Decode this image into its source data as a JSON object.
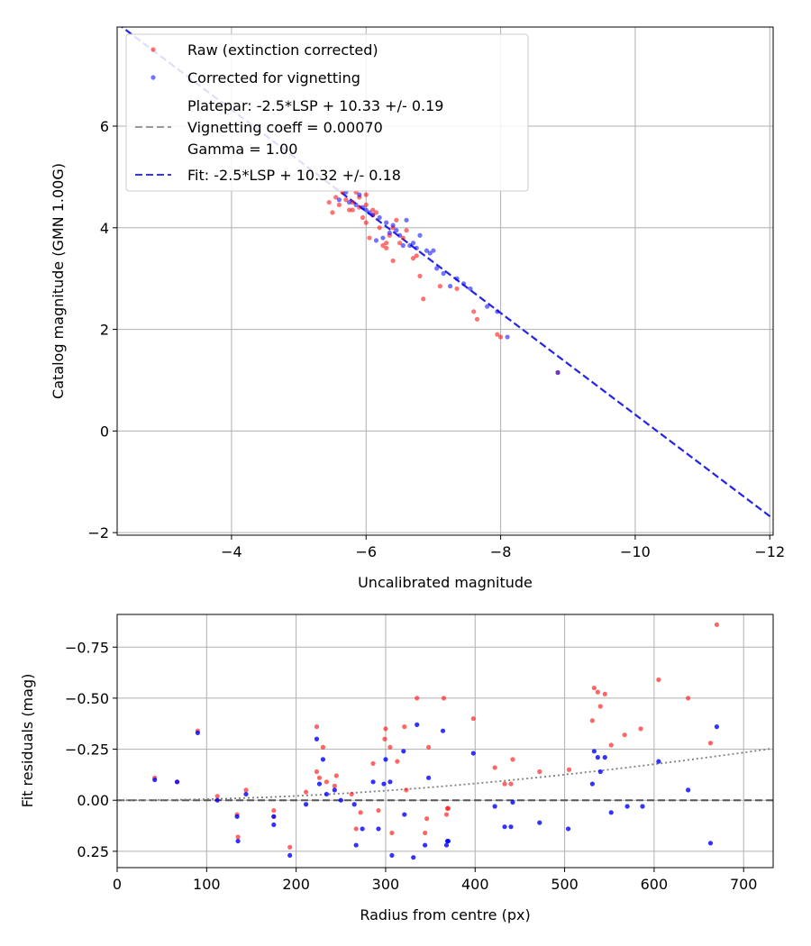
{
  "chart_data": [
    {
      "type": "scatter",
      "xlabel": "Uncalibrated magnitude",
      "ylabel": "Catalog magnitude (GMN 1.00G)",
      "xlim": [
        -2.3,
        -12.05
      ],
      "ylim": [
        7.95,
        -2.05
      ],
      "x_ticks": [
        -4,
        -6,
        -8,
        -10,
        -12
      ],
      "x_tick_labels": [
        "−4",
        "−6",
        "−8",
        "−10",
        "−12"
      ],
      "y_ticks": [
        -2,
        0,
        2,
        4,
        6
      ],
      "y_tick_labels": [
        "−2",
        "0",
        "2",
        "4",
        "6"
      ],
      "grid": true,
      "legend_position": "top-left",
      "legend": [
        {
          "kind": "marker",
          "color": "#ff0000",
          "lines": [
            "Raw (extinction corrected)"
          ]
        },
        {
          "kind": "marker",
          "color": "#0000ff",
          "lines": [
            "Corrected for vignetting"
          ]
        },
        {
          "kind": "line",
          "color": "#808080",
          "dash": "dashed",
          "lines": [
            "Platepar: -2.5*LSP + 10.33 +/- 0.19",
            "Vignetting coeff = 0.00070",
            "Gamma = 1.00"
          ]
        },
        {
          "kind": "line",
          "color": "#0000ff",
          "dash": "dashed",
          "lines": [
            "Fit: -2.5*LSP + 10.32 +/- 0.18"
          ]
        }
      ],
      "lines": [
        {
          "name": "Platepar",
          "color": "#808080",
          "dash": "dashed",
          "slope": 1,
          "intercept": 10.33
        },
        {
          "name": "Fit",
          "color": "#0000ff",
          "dash": "dashed",
          "slope": 1,
          "intercept": 10.32
        }
      ],
      "series": [
        {
          "name": "Raw (extinction corrected)",
          "color": "#ff0000",
          "points": [
            [
              -5.5,
              4.3
            ],
            [
              -5.45,
              4.5
            ],
            [
              -5.55,
              4.6
            ],
            [
              -5.6,
              4.45
            ],
            [
              -5.7,
              4.55
            ],
            [
              -5.75,
              4.35
            ],
            [
              -5.8,
              4.5
            ],
            [
              -5.85,
              4.7
            ],
            [
              -5.9,
              4.6
            ],
            [
              -5.95,
              4.2
            ],
            [
              -5.8,
              4.35
            ],
            [
              -5.9,
              4.4
            ],
            [
              -6.0,
              4.45
            ],
            [
              -6.0,
              4.1
            ],
            [
              -6.05,
              3.8
            ],
            [
              -6.1,
              4.25
            ],
            [
              -6.15,
              4.3
            ],
            [
              -6.2,
              4.0
            ],
            [
              -6.25,
              3.65
            ],
            [
              -6.3,
              3.6
            ],
            [
              -6.35,
              3.85
            ],
            [
              -6.4,
              4.0
            ],
            [
              -6.45,
              4.15
            ],
            [
              -6.4,
              3.35
            ],
            [
              -6.5,
              3.7
            ],
            [
              -6.55,
              3.8
            ],
            [
              -6.6,
              3.95
            ],
            [
              -6.7,
              3.4
            ],
            [
              -6.75,
              3.45
            ],
            [
              -6.8,
              3.05
            ],
            [
              -6.85,
              2.6
            ],
            [
              -7.1,
              2.85
            ],
            [
              -7.35,
              2.8
            ],
            [
              -7.6,
              2.35
            ],
            [
              -7.65,
              2.2
            ],
            [
              -7.95,
              1.9
            ],
            [
              -8.0,
              1.85
            ],
            [
              -8.85,
              1.15
            ],
            [
              -6.0,
              4.65
            ],
            [
              -5.65,
              4.7
            ],
            [
              -6.1,
              4.35
            ],
            [
              -6.3,
              3.7
            ]
          ]
        },
        {
          "name": "Corrected for vignetting",
          "color": "#0000ff",
          "points": [
            [
              -5.6,
              4.55
            ],
            [
              -5.7,
              4.7
            ],
            [
              -5.75,
              4.5
            ],
            [
              -5.85,
              4.45
            ],
            [
              -5.95,
              4.4
            ],
            [
              -6.05,
              4.3
            ],
            [
              -6.1,
              4.25
            ],
            [
              -6.2,
              4.2
            ],
            [
              -6.25,
              3.8
            ],
            [
              -6.3,
              4.1
            ],
            [
              -6.35,
              3.9
            ],
            [
              -6.4,
              4.05
            ],
            [
              -6.5,
              3.85
            ],
            [
              -6.55,
              3.65
            ],
            [
              -6.6,
              4.15
            ],
            [
              -6.7,
              3.7
            ],
            [
              -6.75,
              3.6
            ],
            [
              -6.8,
              3.85
            ],
            [
              -6.9,
              3.55
            ],
            [
              -6.95,
              3.5
            ],
            [
              -7.05,
              3.2
            ],
            [
              -7.15,
              3.1
            ],
            [
              -7.25,
              2.85
            ],
            [
              -7.45,
              2.9
            ],
            [
              -7.55,
              2.8
            ],
            [
              -7.8,
              2.45
            ],
            [
              -7.95,
              2.35
            ],
            [
              -8.1,
              1.85
            ],
            [
              -8.85,
              1.15
            ],
            [
              -5.9,
              4.65
            ],
            [
              -6.15,
              3.75
            ],
            [
              -6.45,
              3.95
            ],
            [
              -6.65,
              3.65
            ],
            [
              -7.0,
              3.55
            ],
            [
              -7.35,
              3.0
            ],
            [
              -6.0,
              4.35
            ]
          ]
        }
      ]
    },
    {
      "type": "scatter",
      "xlabel": "Radius from centre (px)",
      "ylabel": "Fit residuals (mag)",
      "xlim": [
        0,
        733
      ],
      "ylim": [
        -0.91,
        0.33
      ],
      "x_ticks": [
        0,
        100,
        200,
        300,
        400,
        500,
        600,
        700
      ],
      "x_tick_labels": [
        "0",
        "100",
        "200",
        "300",
        "400",
        "500",
        "600",
        "700"
      ],
      "y_ticks": [
        0.25,
        0,
        -0.25,
        -0.5,
        -0.75
      ],
      "y_tick_labels": [
        "0.25",
        "0.00",
        "−0.25",
        "−0.50",
        "−0.75"
      ],
      "grid": true,
      "zero_line": {
        "y": 0,
        "color": "#555555",
        "dash": "dashed"
      },
      "vignetting_curve": {
        "color": "#808080",
        "dash": "dotted",
        "coeff": 0.0007
      },
      "series": [
        {
          "name": "Raw (extinction corrected)",
          "color": "#ff0000",
          "points": [
            [
              42,
              -0.11
            ],
            [
              67,
              -0.09
            ],
            [
              90,
              -0.34
            ],
            [
              112,
              -0.02
            ],
            [
              134,
              0.07
            ],
            [
              135,
              0.18
            ],
            [
              144,
              -0.05
            ],
            [
              175,
              0.05
            ],
            [
              175,
              0.08
            ],
            [
              193,
              0.23
            ],
            [
              211,
              -0.04
            ],
            [
              223,
              -0.14
            ],
            [
              223,
              -0.36
            ],
            [
              226,
              -0.11
            ],
            [
              230,
              -0.26
            ],
            [
              234,
              -0.09
            ],
            [
              243,
              -0.07
            ],
            [
              245,
              -0.12
            ],
            [
              262,
              -0.03
            ],
            [
              267,
              0.14
            ],
            [
              272,
              0.06
            ],
            [
              286,
              -0.18
            ],
            [
              292,
              0.05
            ],
            [
              299,
              -0.3
            ],
            [
              300,
              -0.35
            ],
            [
              305,
              -0.26
            ],
            [
              307,
              0.16
            ],
            [
              313,
              -0.19
            ],
            [
              321,
              -0.36
            ],
            [
              323,
              -0.05
            ],
            [
              335,
              -0.5
            ],
            [
              344,
              0.16
            ],
            [
              346,
              0.09
            ],
            [
              348,
              -0.26
            ],
            [
              365,
              -0.5
            ],
            [
              368,
              0.07
            ],
            [
              369,
              0.04
            ],
            [
              370,
              0.04
            ],
            [
              398,
              -0.4
            ],
            [
              422,
              -0.16
            ],
            [
              433,
              -0.08
            ],
            [
              440,
              -0.08
            ],
            [
              442,
              -0.2
            ],
            [
              472,
              -0.14
            ],
            [
              505,
              -0.15
            ],
            [
              531,
              -0.39
            ],
            [
              533,
              -0.55
            ],
            [
              537,
              -0.53
            ],
            [
              540,
              -0.46
            ],
            [
              545,
              -0.52
            ],
            [
              552,
              -0.27
            ],
            [
              567,
              -0.32
            ],
            [
              585,
              -0.35
            ],
            [
              605,
              -0.59
            ],
            [
              638,
              -0.5
            ],
            [
              663,
              -0.28
            ],
            [
              670,
              -0.86
            ]
          ]
        },
        {
          "name": "Corrected for vignetting",
          "color": "#0000ff",
          "points": [
            [
              42,
              -0.1
            ],
            [
              67,
              -0.09
            ],
            [
              90,
              -0.33
            ],
            [
              112,
              0.0
            ],
            [
              134,
              0.08
            ],
            [
              135,
              0.2
            ],
            [
              144,
              -0.03
            ],
            [
              175,
              0.08
            ],
            [
              175,
              0.12
            ],
            [
              193,
              0.27
            ],
            [
              211,
              0.02
            ],
            [
              223,
              -0.3
            ],
            [
              226,
              -0.08
            ],
            [
              230,
              -0.2
            ],
            [
              234,
              -0.03
            ],
            [
              243,
              -0.05
            ],
            [
              250,
              0.0
            ],
            [
              265,
              0.02
            ],
            [
              267,
              0.22
            ],
            [
              274,
              0.14
            ],
            [
              286,
              -0.09
            ],
            [
              292,
              0.14
            ],
            [
              298,
              -0.08
            ],
            [
              300,
              -0.2
            ],
            [
              305,
              -0.09
            ],
            [
              307,
              0.27
            ],
            [
              320,
              -0.24
            ],
            [
              321,
              0.07
            ],
            [
              331,
              0.28
            ],
            [
              335,
              -0.37
            ],
            [
              344,
              0.22
            ],
            [
              348,
              -0.11
            ],
            [
              364,
              -0.34
            ],
            [
              368,
              0.22
            ],
            [
              369,
              0.2
            ],
            [
              370,
              0.2
            ],
            [
              398,
              -0.23
            ],
            [
              422,
              0.03
            ],
            [
              433,
              0.13
            ],
            [
              440,
              0.13
            ],
            [
              442,
              0.01
            ],
            [
              472,
              0.11
            ],
            [
              504,
              0.14
            ],
            [
              531,
              -0.08
            ],
            [
              533,
              -0.24
            ],
            [
              537,
              -0.21
            ],
            [
              540,
              -0.14
            ],
            [
              545,
              -0.21
            ],
            [
              552,
              0.06
            ],
            [
              570,
              0.03
            ],
            [
              587,
              0.03
            ],
            [
              605,
              -0.19
            ],
            [
              638,
              -0.05
            ],
            [
              663,
              0.21
            ],
            [
              670,
              -0.36
            ]
          ]
        }
      ]
    }
  ]
}
